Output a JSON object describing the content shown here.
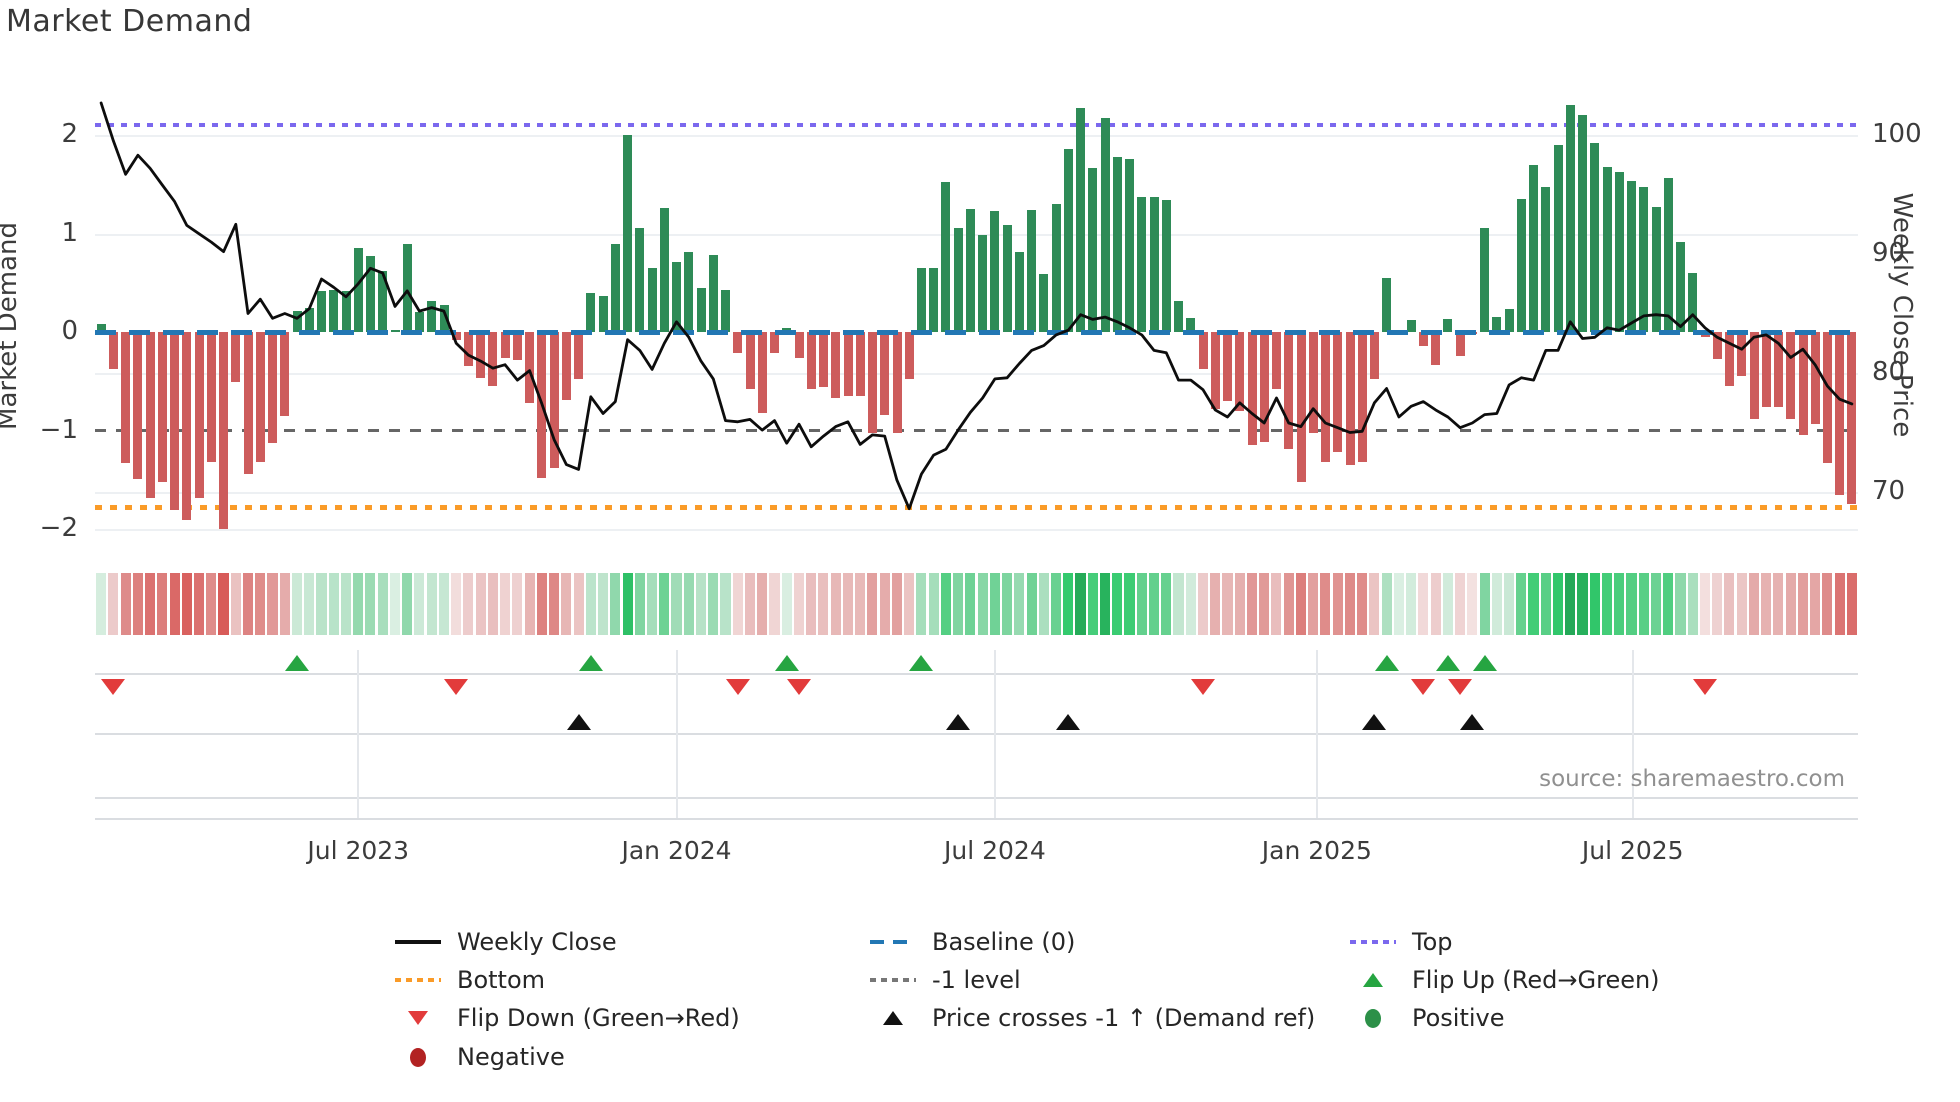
{
  "title": "Market Demand",
  "source_note": "source: sharemaestro.com",
  "axes": {
    "left_label": "Market Demand",
    "right_label": "Weekly Close Price",
    "left_ticks": [
      {
        "label": "2",
        "value": 2
      },
      {
        "label": "1",
        "value": 1
      },
      {
        "label": "0",
        "value": 0
      },
      {
        "label": "−1",
        "value": -1
      },
      {
        "label": "−2",
        "value": -2
      }
    ],
    "right_ticks": [
      {
        "label": "100",
        "value": 100
      },
      {
        "label": "90",
        "value": 90
      },
      {
        "label": "80",
        "value": 80
      },
      {
        "label": "70",
        "value": 70
      }
    ],
    "x_ticks": [
      {
        "label": "Jul 2023",
        "week": 21
      },
      {
        "label": "Jan 2024",
        "week": 47
      },
      {
        "label": "Jul 2024",
        "week": 73
      },
      {
        "label": "Jan 2025",
        "week": 99.3
      },
      {
        "label": "Jul 2025",
        "week": 125.1
      }
    ]
  },
  "reference_lines": {
    "top": {
      "label": "Top",
      "value": 2.1,
      "color": "#7b68ee",
      "style": "dotted"
    },
    "baseline": {
      "label": "Baseline (0)",
      "value": 0,
      "color": "#2277b4",
      "style": "dashed"
    },
    "minus1": {
      "label": "-1 level",
      "value": -1,
      "color": "#666666",
      "style": "dashed"
    },
    "bottom": {
      "label": "Bottom",
      "value": -1.78,
      "color": "#fa9b28",
      "style": "dotted"
    }
  },
  "colors": {
    "positive_bar": "#2e8b57",
    "negative_bar": "#cd5c5c",
    "price_line": "#0d0d0d",
    "flip_up": "#26a541",
    "flip_down": "#e23b3b",
    "price_cross": "#111111",
    "negative_dot": "#b22222",
    "positive_dot": "#2c9048"
  },
  "legend": {
    "columns": [
      [
        {
          "type": "line",
          "color": "#111111",
          "label": "Weekly Close"
        },
        {
          "type": "dotted",
          "color": "#fa9b28",
          "label": "Bottom"
        },
        {
          "type": "tri-down",
          "color": "#e23b3b",
          "label": "Flip Down (Green→Red)"
        },
        {
          "type": "circle",
          "color": "#b22222",
          "label": "Negative"
        }
      ],
      [
        {
          "type": "dashed",
          "color": "#2277b4",
          "label": "Baseline (0)"
        },
        {
          "type": "dotted",
          "color": "#777777",
          "label": "-1 level"
        },
        {
          "type": "tri-up",
          "color": "#111111",
          "label": "Price crosses -1 ↑ (Demand ref)"
        }
      ],
      [
        {
          "type": "dotted",
          "color": "#7b68ee",
          "label": "Top"
        },
        {
          "type": "tri-up",
          "color": "#26a541",
          "label": "Flip Up (Red→Green)"
        },
        {
          "type": "circle",
          "color": "#2c9048",
          "label": "Positive"
        }
      ]
    ]
  },
  "chart_data": {
    "type": "combo",
    "title": "Market Demand",
    "x_unit": "week",
    "x_tick_labels": [
      "Jul 2023",
      "Jan 2024",
      "Jul 2024",
      "Jan 2025",
      "Jul 2025"
    ],
    "demand_axis": {
      "label": "Market Demand",
      "ticks": [
        2,
        1,
        0,
        -1,
        -2
      ],
      "ylim": [
        -2.2,
        2.5
      ]
    },
    "price_axis": {
      "label": "Weekly Close Price",
      "ticks": [
        100,
        90,
        80,
        70
      ],
      "ylim": [
        66,
        104
      ]
    },
    "grid": true,
    "legend_position": "bottom",
    "series": [
      {
        "name": "Market Demand",
        "type": "bar",
        "values": [
          0.08,
          -0.38,
          -1.33,
          -1.49,
          -1.69,
          -1.52,
          -1.81,
          -1.91,
          -1.69,
          -1.32,
          -2.0,
          -0.51,
          -1.44,
          -1.32,
          -1.13,
          -0.85,
          0.21,
          0.24,
          0.42,
          0.43,
          0.42,
          0.85,
          0.77,
          0.62,
          0.02,
          0.89,
          0.2,
          0.31,
          0.27,
          -0.08,
          -0.35,
          -0.47,
          -0.55,
          -0.26,
          -0.28,
          -0.72,
          -1.48,
          -1.38,
          -0.69,
          -0.48,
          0.4,
          0.37,
          0.89,
          2.0,
          1.06,
          0.65,
          1.26,
          0.71,
          0.81,
          0.45,
          0.78,
          0.43,
          -0.21,
          -0.58,
          -0.82,
          -0.21,
          0.04,
          -0.26,
          -0.58,
          -0.56,
          -0.67,
          -0.65,
          -0.65,
          -1.03,
          -0.84,
          -1.03,
          -0.48,
          0.65,
          0.65,
          1.52,
          1.06,
          1.25,
          0.98,
          1.23,
          1.09,
          0.81,
          1.24,
          0.59,
          1.3,
          1.86,
          2.27,
          1.66,
          2.17,
          1.78,
          1.76,
          1.37,
          1.37,
          1.34,
          0.31,
          0.14,
          -0.38,
          -0.78,
          -0.7,
          -0.8,
          -1.15,
          -1.12,
          -0.58,
          -1.19,
          -1.52,
          -1.03,
          -1.32,
          -1.22,
          -1.35,
          -1.32,
          -0.48,
          0.55,
          0.02,
          0.12,
          -0.14,
          -0.33,
          0.13,
          -0.24,
          -0.02,
          1.06,
          0.15,
          0.23,
          1.35,
          1.7,
          1.47,
          1.9,
          2.3,
          2.2,
          1.92,
          1.68,
          1.62,
          1.53,
          1.47,
          1.27,
          1.56,
          0.91,
          0.6,
          -0.05,
          -0.27,
          -0.55,
          -0.45,
          -0.88,
          -0.76,
          -0.76,
          -0.88,
          -1.05,
          -0.93,
          -1.33,
          -1.65,
          -1.75
        ]
      },
      {
        "name": "Weekly Close",
        "type": "line",
        "values": [
          102.7,
          99.5,
          96.7,
          98.3,
          97.2,
          95.8,
          94.4,
          92.4,
          91.7,
          91.0,
          90.2,
          92.5,
          85.0,
          86.2,
          84.6,
          85.0,
          84.6,
          85.4,
          87.9,
          87.2,
          86.4,
          87.5,
          88.8,
          88.4,
          85.6,
          86.9,
          85.2,
          85.5,
          85.2,
          82.5,
          81.5,
          81.0,
          80.4,
          80.7,
          79.4,
          80.2,
          77.4,
          74.4,
          72.3,
          71.9,
          78.0,
          76.6,
          77.6,
          82.8,
          81.9,
          80.3,
          82.5,
          84.3,
          83.0,
          81.0,
          79.5,
          76.0,
          75.9,
          76.1,
          75.2,
          76.0,
          74.1,
          75.7,
          73.8,
          74.7,
          75.5,
          75.9,
          74.0,
          74.8,
          74.7,
          71.0,
          68.6,
          71.5,
          73.1,
          73.6,
          75.2,
          76.7,
          77.9,
          79.5,
          79.6,
          80.8,
          81.9,
          82.3,
          83.2,
          83.6,
          84.9,
          84.5,
          84.7,
          84.3,
          83.8,
          83.2,
          81.9,
          81.7,
          79.4,
          79.4,
          78.6,
          76.9,
          76.3,
          77.5,
          76.6,
          75.8,
          77.9,
          75.8,
          75.5,
          77.0,
          75.8,
          75.4,
          75.0,
          75.1,
          77.5,
          78.7,
          76.3,
          77.2,
          77.6,
          76.9,
          76.3,
          75.4,
          75.8,
          76.5,
          76.6,
          79.0,
          79.6,
          79.4,
          81.9,
          81.9,
          84.3,
          82.9,
          83.0,
          83.8,
          83.6,
          84.2,
          84.8,
          84.9,
          84.8,
          83.9,
          84.9,
          83.8,
          83.0,
          82.5,
          82.0,
          83.0,
          83.2,
          82.5,
          81.3,
          82.0,
          80.7,
          78.9,
          77.8,
          77.4
        ]
      }
    ],
    "markers": {
      "flip_up": {
        "label": "Flip Up (Red→Green)",
        "weeks": [
          16,
          40,
          56,
          67,
          105,
          110,
          113
        ]
      },
      "flip_down": {
        "label": "Flip Down (Green→Red)",
        "weeks": [
          1,
          29,
          52,
          57,
          90,
          108,
          111,
          131
        ]
      },
      "price_cross": {
        "label": "Price crosses -1 ↑ (Demand ref)",
        "weeks": [
          39,
          70,
          79,
          104,
          112
        ]
      }
    },
    "heatmap": {
      "description": "weekly demand value colored red(negative) to green(positive)"
    }
  }
}
